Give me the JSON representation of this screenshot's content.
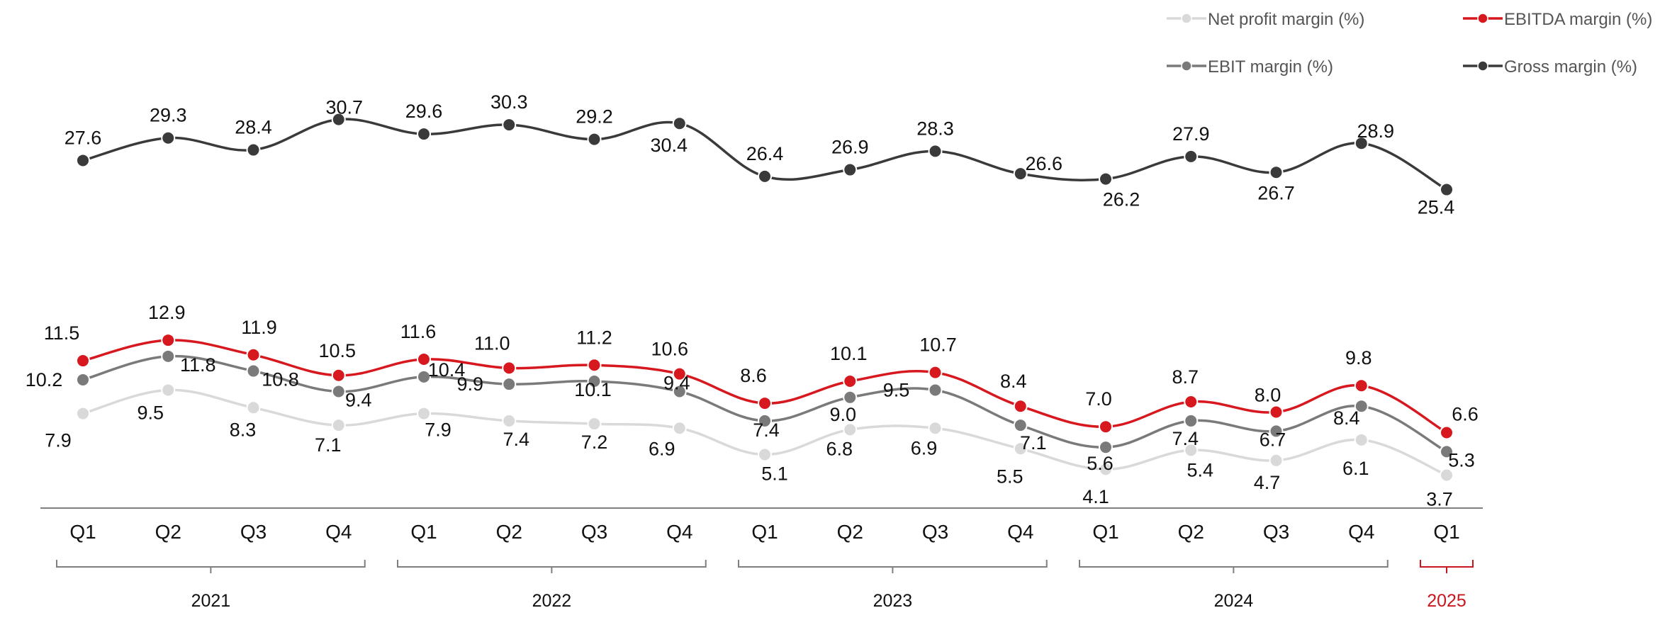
{
  "chart_data": {
    "type": "line",
    "title": "",
    "xlabel": "",
    "ylabel": "",
    "ylim": [
      3,
      31
    ],
    "grid": false,
    "legend_position": "top-right",
    "categories": [
      "Q1",
      "Q2",
      "Q3",
      "Q4",
      "Q1",
      "Q2",
      "Q3",
      "Q4",
      "Q1",
      "Q2",
      "Q3",
      "Q4",
      "Q1",
      "Q2",
      "Q3",
      "Q4",
      "Q1"
    ],
    "year_groups": [
      {
        "label": "2021",
        "start": 0,
        "end": 3,
        "highlight": false
      },
      {
        "label": "2022",
        "start": 4,
        "end": 7,
        "highlight": false
      },
      {
        "label": "2023",
        "start": 8,
        "end": 11,
        "highlight": false
      },
      {
        "label": "2024",
        "start": 12,
        "end": 15,
        "highlight": false
      },
      {
        "label": "2025",
        "start": 16,
        "end": 16,
        "highlight": true
      }
    ],
    "series": [
      {
        "key": "gross",
        "name": "Gross margin (%)",
        "color": "#3a3a3a",
        "values": [
          27.6,
          29.3,
          28.4,
          30.7,
          29.6,
          30.3,
          29.2,
          30.4,
          26.4,
          26.9,
          28.3,
          26.6,
          26.2,
          27.9,
          26.7,
          28.9,
          25.4
        ],
        "labels": [
          "27.6",
          "29.3",
          "28.4",
          "30.7",
          "29.6",
          "30.3",
          "29.2",
          "30.4",
          "26.4",
          "26.9",
          "28.3",
          "26.6",
          "26.2",
          "27.9",
          "26.7",
          "28.9",
          "25.4"
        ]
      },
      {
        "key": "ebitda",
        "name": "EBITDA margin (%)",
        "color": "#d7181f",
        "values": [
          11.5,
          12.9,
          11.9,
          10.5,
          11.6,
          11.0,
          11.2,
          10.6,
          8.6,
          10.1,
          10.7,
          8.4,
          7.0,
          8.7,
          8.0,
          9.8,
          6.6
        ],
        "labels": [
          "11.5",
          "12.9",
          "11.9",
          "10.5",
          "11.6",
          "11.0",
          "11.2",
          "10.6",
          "8.6",
          "10.1",
          "10.7",
          "8.4",
          "7.0",
          "8.7",
          "8.0",
          "9.8",
          "6.6"
        ]
      },
      {
        "key": "ebit",
        "name": "EBIT margin (%)",
        "color": "#7a7a7a",
        "values": [
          10.2,
          11.8,
          10.8,
          9.4,
          10.4,
          9.9,
          10.1,
          9.4,
          7.4,
          9.0,
          9.5,
          7.1,
          5.6,
          7.4,
          6.7,
          8.4,
          5.3
        ],
        "labels": [
          "10.2",
          "11.8",
          "10.8",
          "9.4",
          "10.4",
          "9.9",
          "10.1",
          "9.4",
          "7.4",
          "9.0",
          "9.5",
          "7.1",
          "5.6",
          "7.4",
          "6.7",
          "8.4",
          "5.3"
        ]
      },
      {
        "key": "net",
        "name": "Net profit margin (%)",
        "color": "#d9d9d9",
        "values": [
          7.9,
          9.5,
          8.3,
          7.1,
          7.9,
          7.4,
          7.2,
          6.9,
          5.1,
          6.8,
          6.9,
          5.5,
          4.1,
          5.4,
          4.7,
          6.1,
          3.7
        ],
        "labels": [
          "7.9",
          "9.5",
          "8.3",
          "7.1",
          "7.9",
          "7.4",
          "7.2",
          "6.9",
          "5.1",
          "6.8",
          "6.9",
          "5.5",
          "4.1",
          "5.4",
          "4.7",
          "6.1",
          "3.7"
        ]
      }
    ],
    "legend": [
      {
        "series": "net",
        "label": "Net profit margin (%)"
      },
      {
        "series": "ebitda",
        "label": "EBITDA margin (%)"
      },
      {
        "series": "ebit",
        "label": "EBIT margin (%)"
      },
      {
        "series": "gross",
        "label": "Gross margin (%)"
      }
    ],
    "highlight_color": "#c8171e"
  }
}
